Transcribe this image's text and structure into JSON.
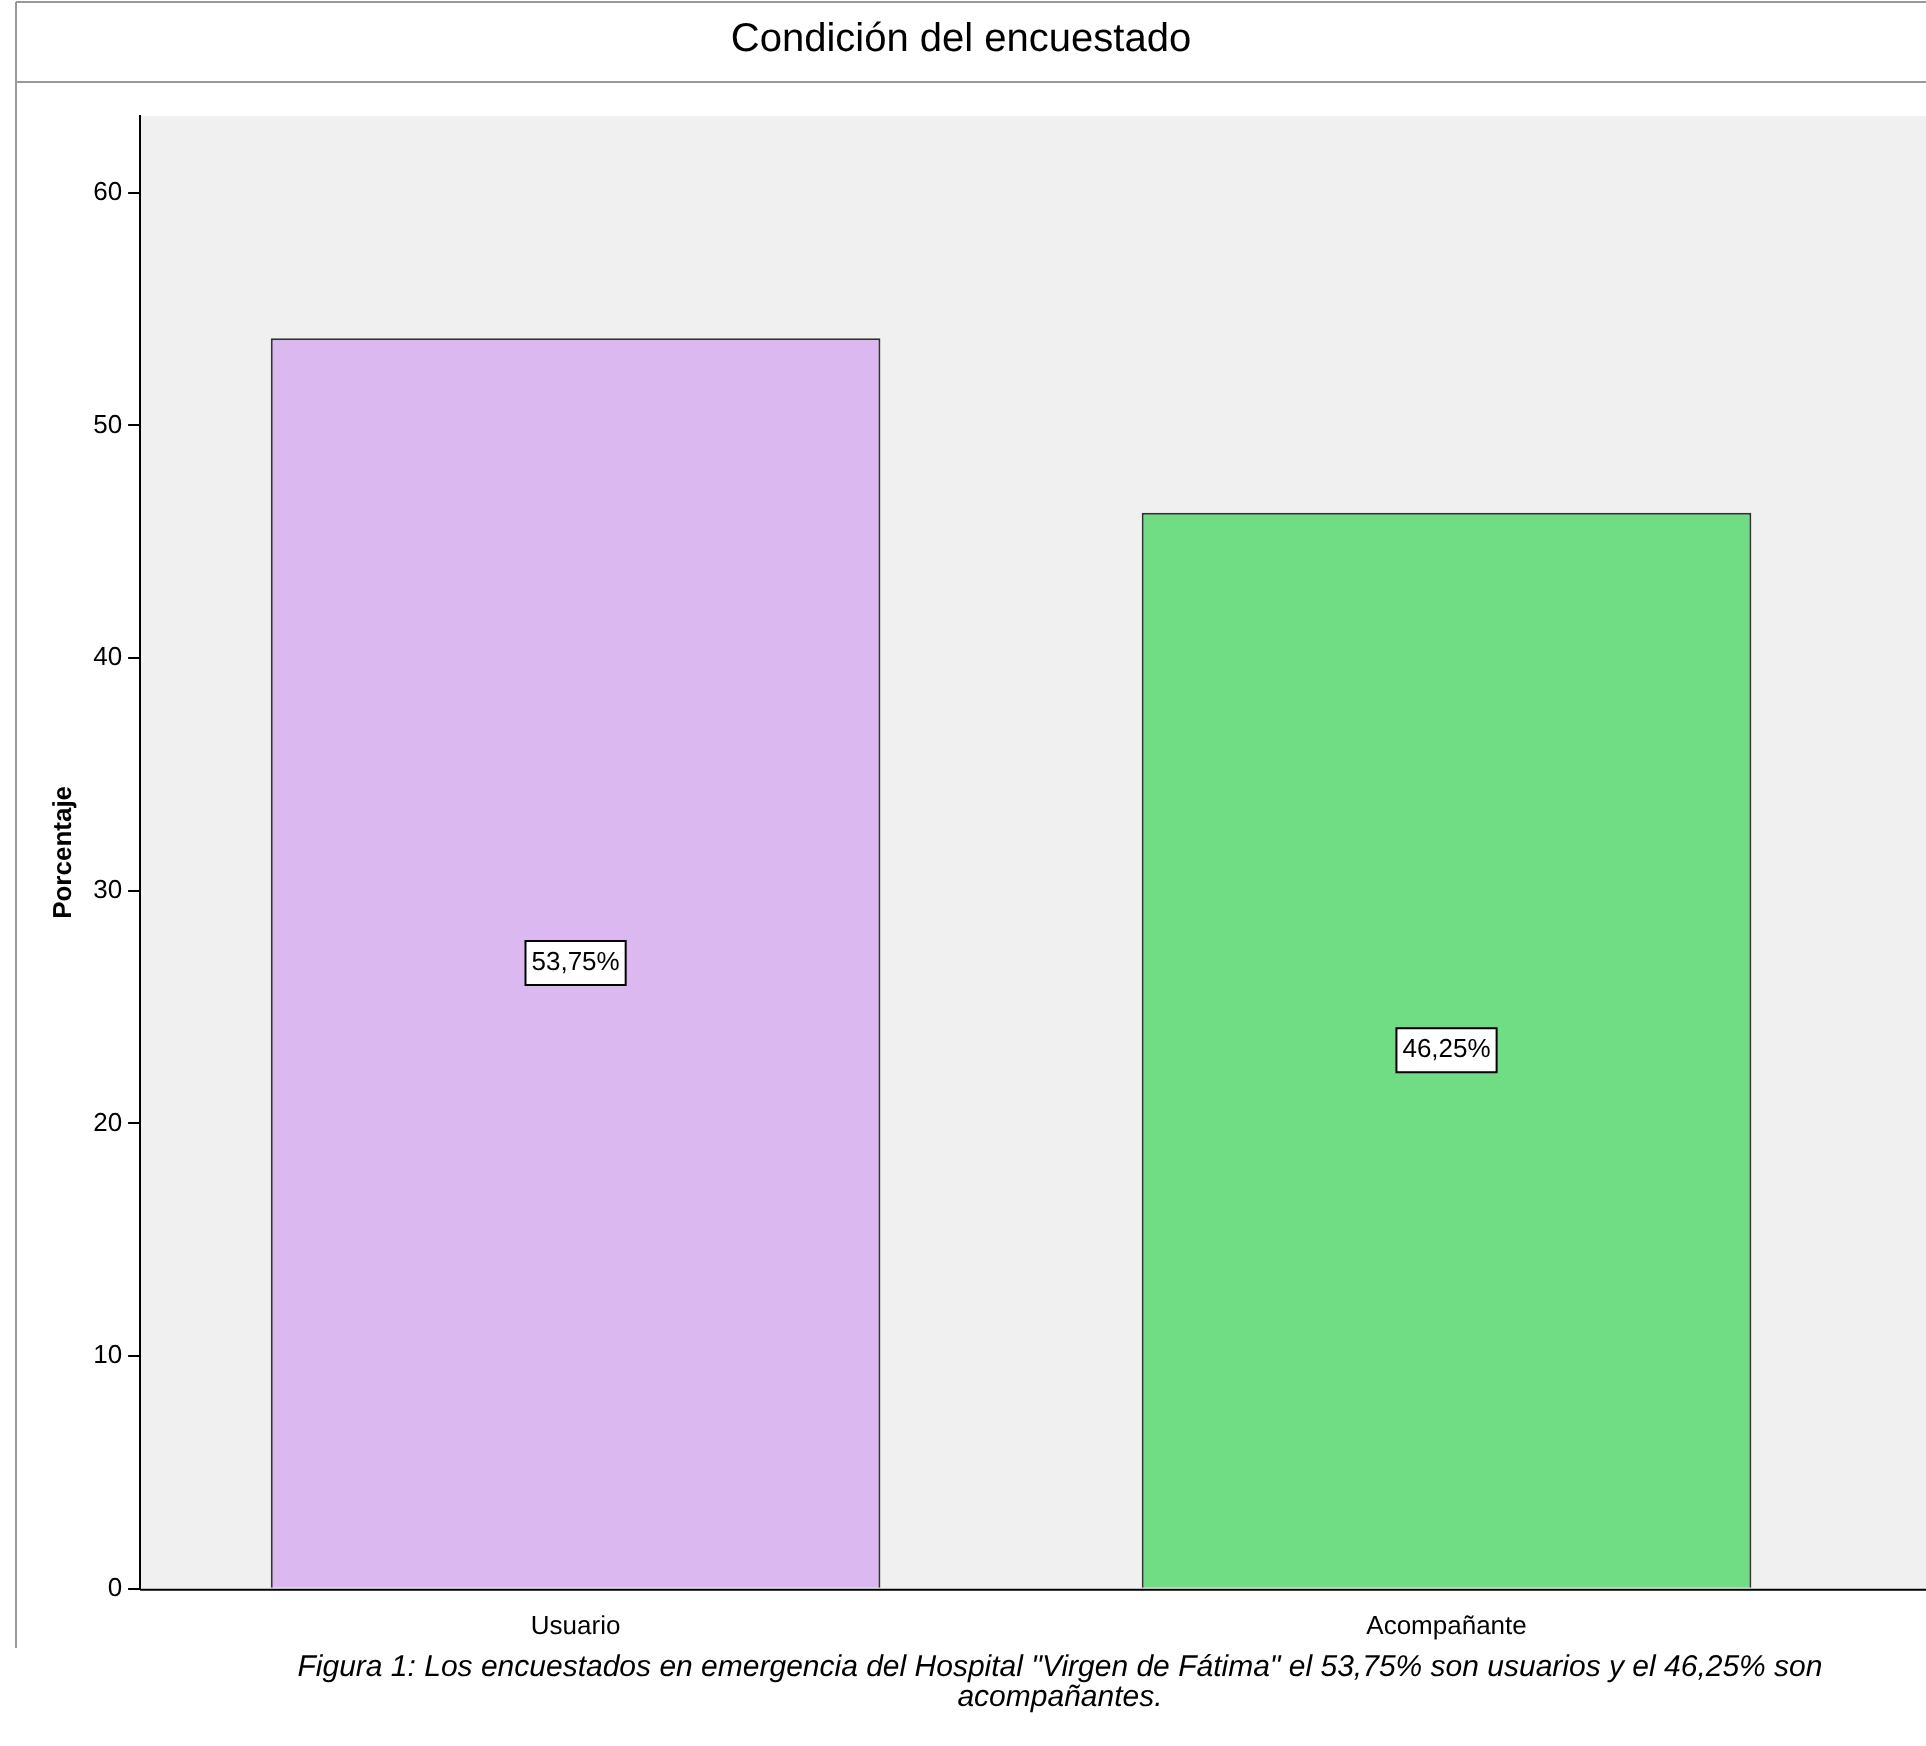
{
  "chart_data": {
    "type": "bar",
    "title": "Condición del encuestado",
    "ylabel": "Porcentaje",
    "categories": [
      "Usuario",
      "Acompañante"
    ],
    "values": [
      53.75,
      46.25
    ],
    "colors": [
      "#dcb8f0",
      "#70dc84"
    ],
    "value_labels": [
      "53,75%",
      "46,25%"
    ],
    "ylim": [
      0,
      63.3
    ],
    "yticks": [
      0,
      10,
      20,
      30,
      40,
      50,
      60
    ],
    "grid": false,
    "legend": false,
    "annotations": [
      "Figura 1: Los encuestados en emergencia del Hospital \"Virgen de Fátima\" el 53,75% son usuarios y el 46,25% son acompañantes."
    ]
  }
}
